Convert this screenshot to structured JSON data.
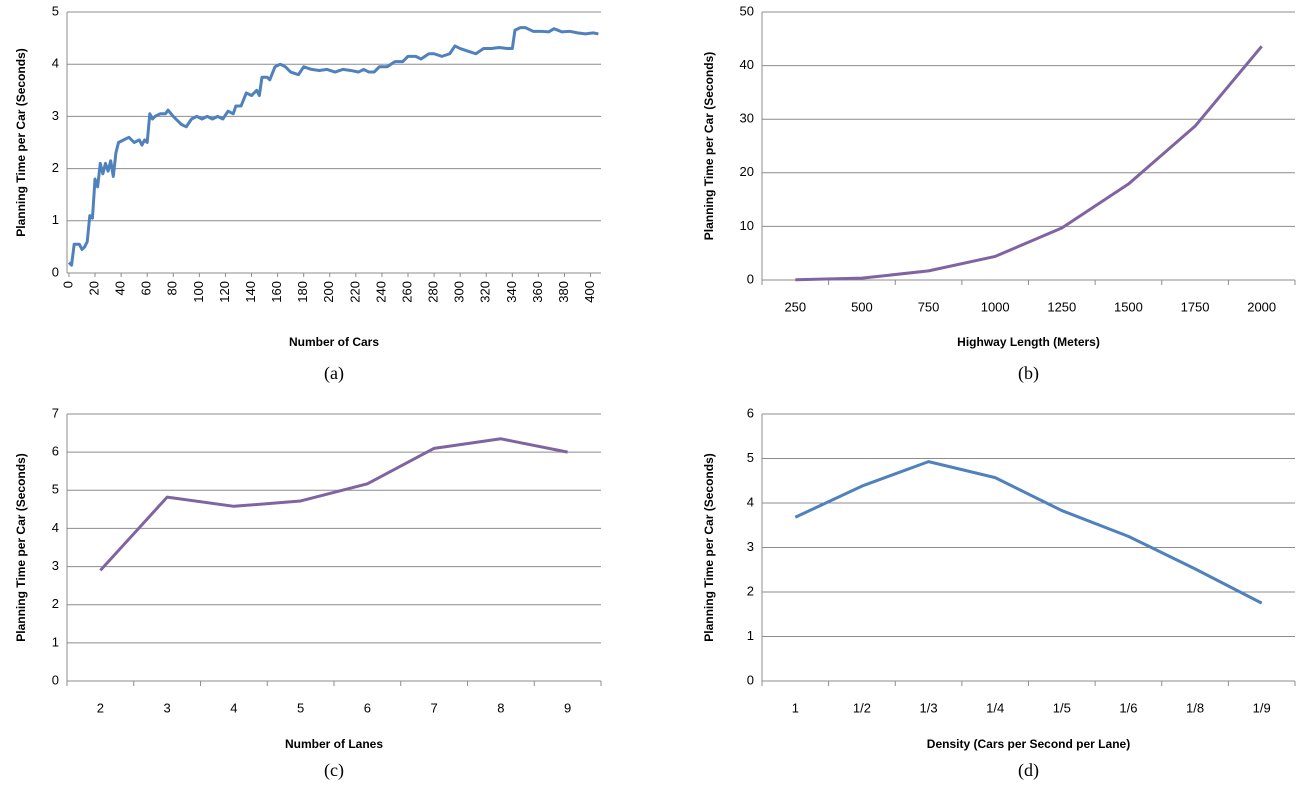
{
  "chart_data": [
    {
      "type": "line",
      "caption": "(a)",
      "x_label": "Number of Cars",
      "y_label": "Planning Time per Car (Seconds)",
      "color": "#4f81bd",
      "grid": true,
      "x": [
        0,
        2,
        4,
        8,
        10,
        12,
        14,
        16,
        18,
        20,
        22,
        24,
        26,
        28,
        30,
        32,
        34,
        36,
        38,
        42,
        46,
        50,
        54,
        56,
        58,
        60,
        62,
        64,
        66,
        70,
        74,
        76,
        80,
        86,
        90,
        94,
        98,
        102,
        106,
        110,
        114,
        118,
        122,
        126,
        128,
        132,
        136,
        140,
        144,
        146,
        148,
        152,
        154,
        158,
        162,
        166,
        170,
        176,
        180,
        186,
        192,
        198,
        204,
        210,
        216,
        222,
        226,
        230,
        234,
        238,
        244,
        250,
        256,
        260,
        266,
        270,
        276,
        280,
        286,
        292,
        296,
        300,
        306,
        312,
        318,
        324,
        330,
        336,
        340,
        342,
        346,
        350,
        356,
        362,
        368,
        372,
        378,
        384,
        390,
        396,
        402,
        406
      ],
      "values": [
        0.2,
        0.15,
        0.55,
        0.55,
        0.45,
        0.5,
        0.6,
        1.1,
        1.05,
        1.8,
        1.65,
        2.1,
        1.9,
        2.1,
        1.95,
        2.15,
        1.85,
        2.3,
        2.5,
        2.55,
        2.6,
        2.5,
        2.55,
        2.45,
        2.55,
        2.5,
        3.05,
        2.95,
        3.0,
        3.05,
        3.05,
        3.12,
        3.0,
        2.85,
        2.8,
        2.95,
        3.0,
        2.95,
        3.0,
        2.95,
        3.0,
        2.95,
        3.1,
        3.05,
        3.2,
        3.2,
        3.45,
        3.4,
        3.5,
        3.4,
        3.75,
        3.75,
        3.7,
        3.95,
        4.0,
        3.95,
        3.85,
        3.8,
        3.95,
        3.9,
        3.88,
        3.9,
        3.85,
        3.9,
        3.88,
        3.85,
        3.9,
        3.85,
        3.85,
        3.95,
        3.95,
        4.05,
        4.05,
        4.15,
        4.15,
        4.1,
        4.2,
        4.2,
        4.15,
        4.2,
        4.35,
        4.3,
        4.25,
        4.2,
        4.3,
        4.3,
        4.32,
        4.3,
        4.3,
        4.65,
        4.7,
        4.7,
        4.63,
        4.63,
        4.62,
        4.68,
        4.62,
        4.63,
        4.6,
        4.58,
        4.6,
        4.58
      ],
      "xlim": [
        -1.5,
        408
      ],
      "xticks": [
        0,
        20,
        40,
        60,
        80,
        100,
        120,
        140,
        160,
        180,
        200,
        220,
        240,
        260,
        280,
        300,
        320,
        340,
        360,
        380,
        400
      ],
      "ylim": [
        0,
        5
      ],
      "yticks": [
        0,
        1,
        2,
        3,
        4,
        5
      ]
    },
    {
      "type": "line",
      "caption": "(b)",
      "x_label": "Highway Length (Meters)",
      "y_label": "Planning Time per Car (Seconds)",
      "color": "#8064a2",
      "grid": true,
      "categories": [
        "250",
        "500",
        "750",
        "1000",
        "1250",
        "1500",
        "1750",
        "2000"
      ],
      "values": [
        0.05,
        0.35,
        1.7,
        4.4,
        9.7,
        17.9,
        28.7,
        43.6
      ],
      "ylim": [
        0,
        50
      ],
      "yticks": [
        0,
        10,
        20,
        30,
        40,
        50
      ]
    },
    {
      "type": "line",
      "caption": "(c)",
      "x_label": "Number of Lanes",
      "y_label": "Planning Time per Car (Seconds)",
      "color": "#8064a2",
      "grid": true,
      "categories": [
        "2",
        "3",
        "4",
        "5",
        "6",
        "7",
        "8",
        "9"
      ],
      "values": [
        2.9,
        4.82,
        4.58,
        4.72,
        5.17,
        6.1,
        6.35,
        6.0
      ],
      "ylim": [
        0,
        7
      ],
      "yticks": [
        0,
        1,
        2,
        3,
        4,
        5,
        6,
        7
      ]
    },
    {
      "type": "line",
      "caption": "(d)",
      "x_label": "Density (Cars per Second per Lane)",
      "y_label": "Planning Time per Car (Seconds)",
      "color": "#4f81bd",
      "grid": true,
      "categories": [
        "1",
        "1/2",
        "1/3",
        "1/4",
        "1/5",
        "1/6",
        "1/8",
        "1/9"
      ],
      "values": [
        3.68,
        4.38,
        4.93,
        4.57,
        3.83,
        3.25,
        2.52,
        1.75
      ],
      "ylim": [
        0,
        6
      ],
      "yticks": [
        0,
        1,
        2,
        3,
        4,
        5,
        6
      ]
    }
  ]
}
